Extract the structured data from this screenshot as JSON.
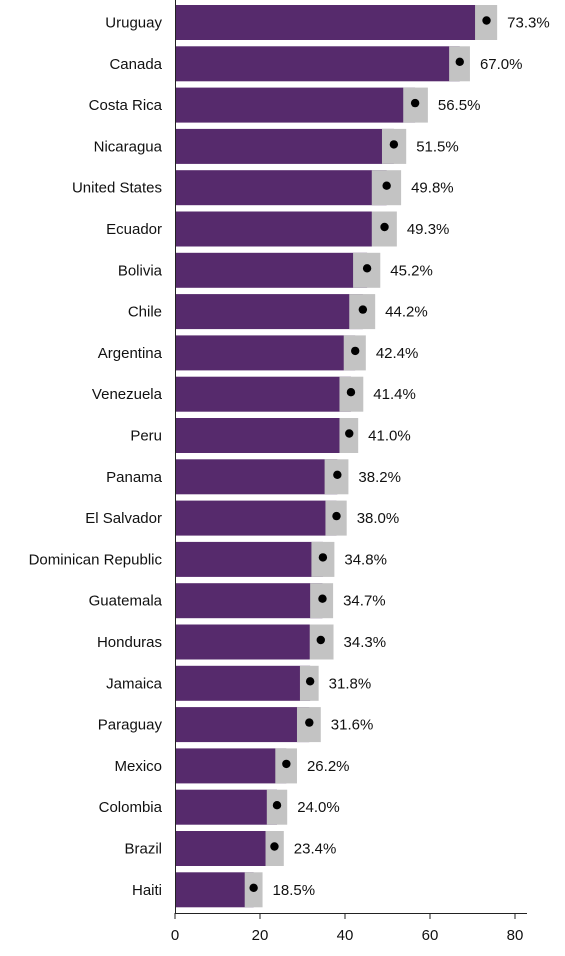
{
  "chart_data": {
    "type": "bar",
    "orientation": "horizontal",
    "title": "",
    "xlabel": "",
    "ylabel": "",
    "xlim": [
      0,
      80
    ],
    "xticks": [
      0,
      20,
      40,
      60,
      80
    ],
    "grid": false,
    "colors": {
      "bar": "#562a6c",
      "interval": "#c3c3c3",
      "point": "#000000"
    },
    "categories": [
      "Uruguay",
      "Canada",
      "Costa Rica",
      "Nicaragua",
      "United States",
      "Ecuador",
      "Bolivia",
      "Chile",
      "Argentina",
      "Venezuela",
      "Peru",
      "Panama",
      "El Salvador",
      "Dominican Republic",
      "Guatemala",
      "Honduras",
      "Jamaica",
      "Paraguay",
      "Mexico",
      "Colombia",
      "Brazil",
      "Haiti"
    ],
    "values": [
      73.3,
      67.0,
      56.5,
      51.5,
      49.8,
      49.3,
      45.2,
      44.2,
      42.4,
      41.4,
      41.0,
      38.2,
      38.0,
      34.8,
      34.7,
      34.3,
      31.8,
      31.6,
      26.2,
      24.0,
      23.4,
      18.5
    ],
    "value_labels": [
      "73.3%",
      "67.0%",
      "56.5%",
      "51.5%",
      "49.8%",
      "49.3%",
      "45.2%",
      "44.2%",
      "42.4%",
      "41.4%",
      "41.0%",
      "38.2%",
      "38.0%",
      "34.8%",
      "34.7%",
      "34.3%",
      "31.8%",
      "31.6%",
      "26.2%",
      "24.0%",
      "23.4%",
      "18.5%"
    ],
    "interval_low": [
      70.6,
      64.5,
      53.7,
      48.7,
      46.3,
      46.3,
      41.9,
      41.0,
      39.7,
      38.7,
      38.7,
      35.2,
      35.4,
      32.1,
      31.8,
      31.7,
      29.4,
      28.7,
      23.6,
      21.6,
      21.3,
      16.4
    ],
    "interval_high": [
      75.8,
      69.4,
      59.5,
      54.4,
      53.2,
      52.2,
      48.3,
      47.1,
      44.9,
      44.3,
      43.1,
      40.8,
      40.4,
      37.5,
      37.2,
      37.3,
      33.8,
      34.3,
      28.7,
      26.4,
      25.6,
      20.6
    ]
  }
}
